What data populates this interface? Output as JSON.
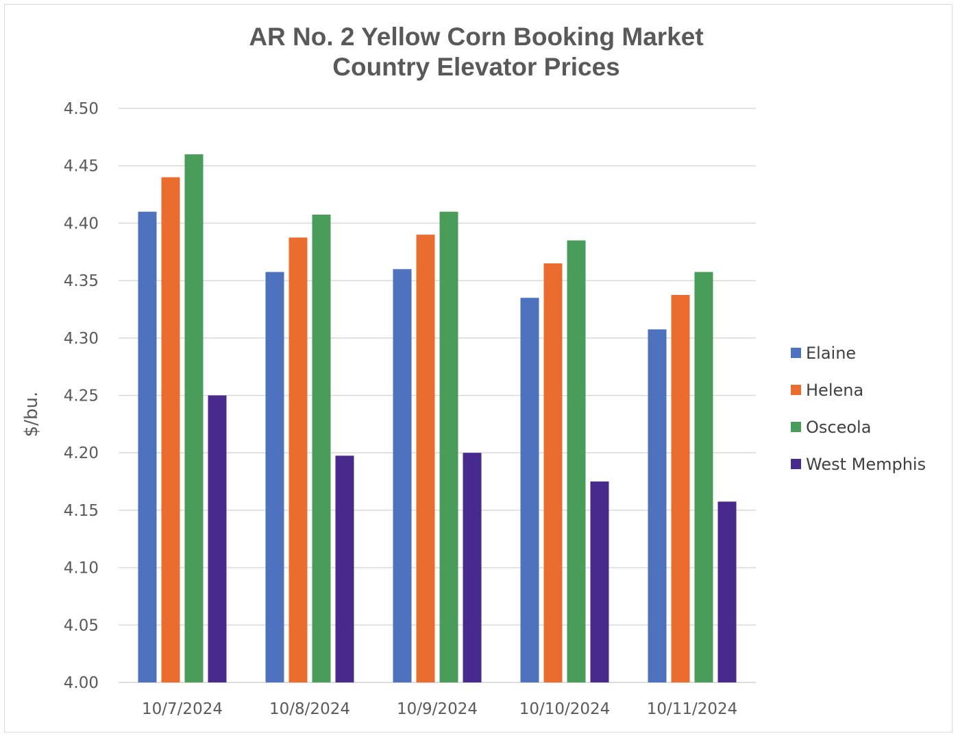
{
  "chart_data": {
    "type": "bar",
    "title": "AR No. 2 Yellow Corn Booking Market",
    "subtitle": "Country Elevator Prices",
    "xlabel": "",
    "ylabel": "$/bu.",
    "ylim": [
      4.0,
      4.5
    ],
    "yticks": [
      "4.00",
      "4.05",
      "4.10",
      "4.15",
      "4.20",
      "4.25",
      "4.30",
      "4.35",
      "4.40",
      "4.45",
      "4.50"
    ],
    "grid": true,
    "legend_position": "right",
    "categories": [
      "10/7/2024",
      "10/8/2024",
      "10/9/2024",
      "10/10/2024",
      "10/11/2024"
    ],
    "series": [
      {
        "name": "Elaine",
        "color": "#4f72be",
        "values": [
          4.41,
          4.3575,
          4.36,
          4.335,
          4.3075
        ]
      },
      {
        "name": "Helena",
        "color": "#eb6c2f",
        "values": [
          4.44,
          4.3875,
          4.39,
          4.365,
          4.3375
        ]
      },
      {
        "name": "Osceola",
        "color": "#4a9c5b",
        "values": [
          4.46,
          4.4075,
          4.41,
          4.385,
          4.3575
        ]
      },
      {
        "name": "West Memphis",
        "color": "#472a8b",
        "values": [
          4.25,
          4.1975,
          4.2,
          4.175,
          4.1575
        ]
      }
    ]
  }
}
